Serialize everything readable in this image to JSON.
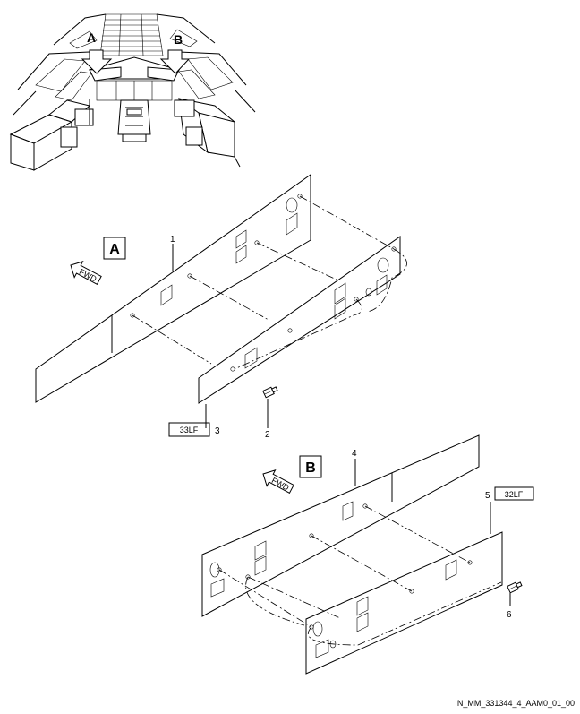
{
  "view_callouts": {
    "a": "A",
    "b": "B"
  },
  "detail_labels": {
    "a": "A",
    "b": "B"
  },
  "fwd_arrows": {
    "upper": "FWD",
    "lower": "FWD"
  },
  "item_numbers": {
    "n1": "1",
    "n2": "2",
    "n3": "3",
    "n4": "4",
    "n5": "5",
    "n6": "6"
  },
  "panel_refs": {
    "upper": "33LF",
    "lower": "32LF"
  },
  "drawing_id": "N_MM_331344_4_AAM0_01_00"
}
